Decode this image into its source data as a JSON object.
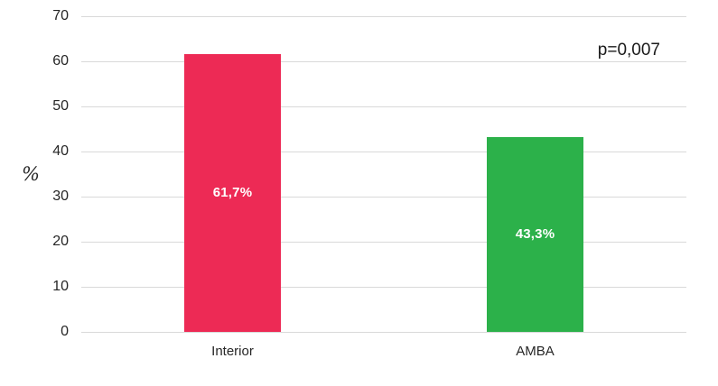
{
  "chart": {
    "y_axis_label": "%",
    "annotation": "p=0,007"
  },
  "chart_data": {
    "type": "bar",
    "categories": [
      "Interior",
      "AMBA"
    ],
    "values": [
      61.7,
      43.3
    ],
    "value_labels": [
      "61,7%",
      "43,3%"
    ],
    "bar_colors": [
      "#ED2A55",
      "#2CB14A"
    ],
    "title": "",
    "xlabel": "",
    "ylabel": "%",
    "ylim": [
      0,
      70
    ],
    "yticks": [
      0,
      10,
      20,
      30,
      40,
      50,
      60,
      70
    ],
    "annotation": "p=0,007",
    "grid": "horizontal",
    "legend": "none",
    "value_label_position": "center-inside",
    "value_label_color": "#ffffff"
  }
}
